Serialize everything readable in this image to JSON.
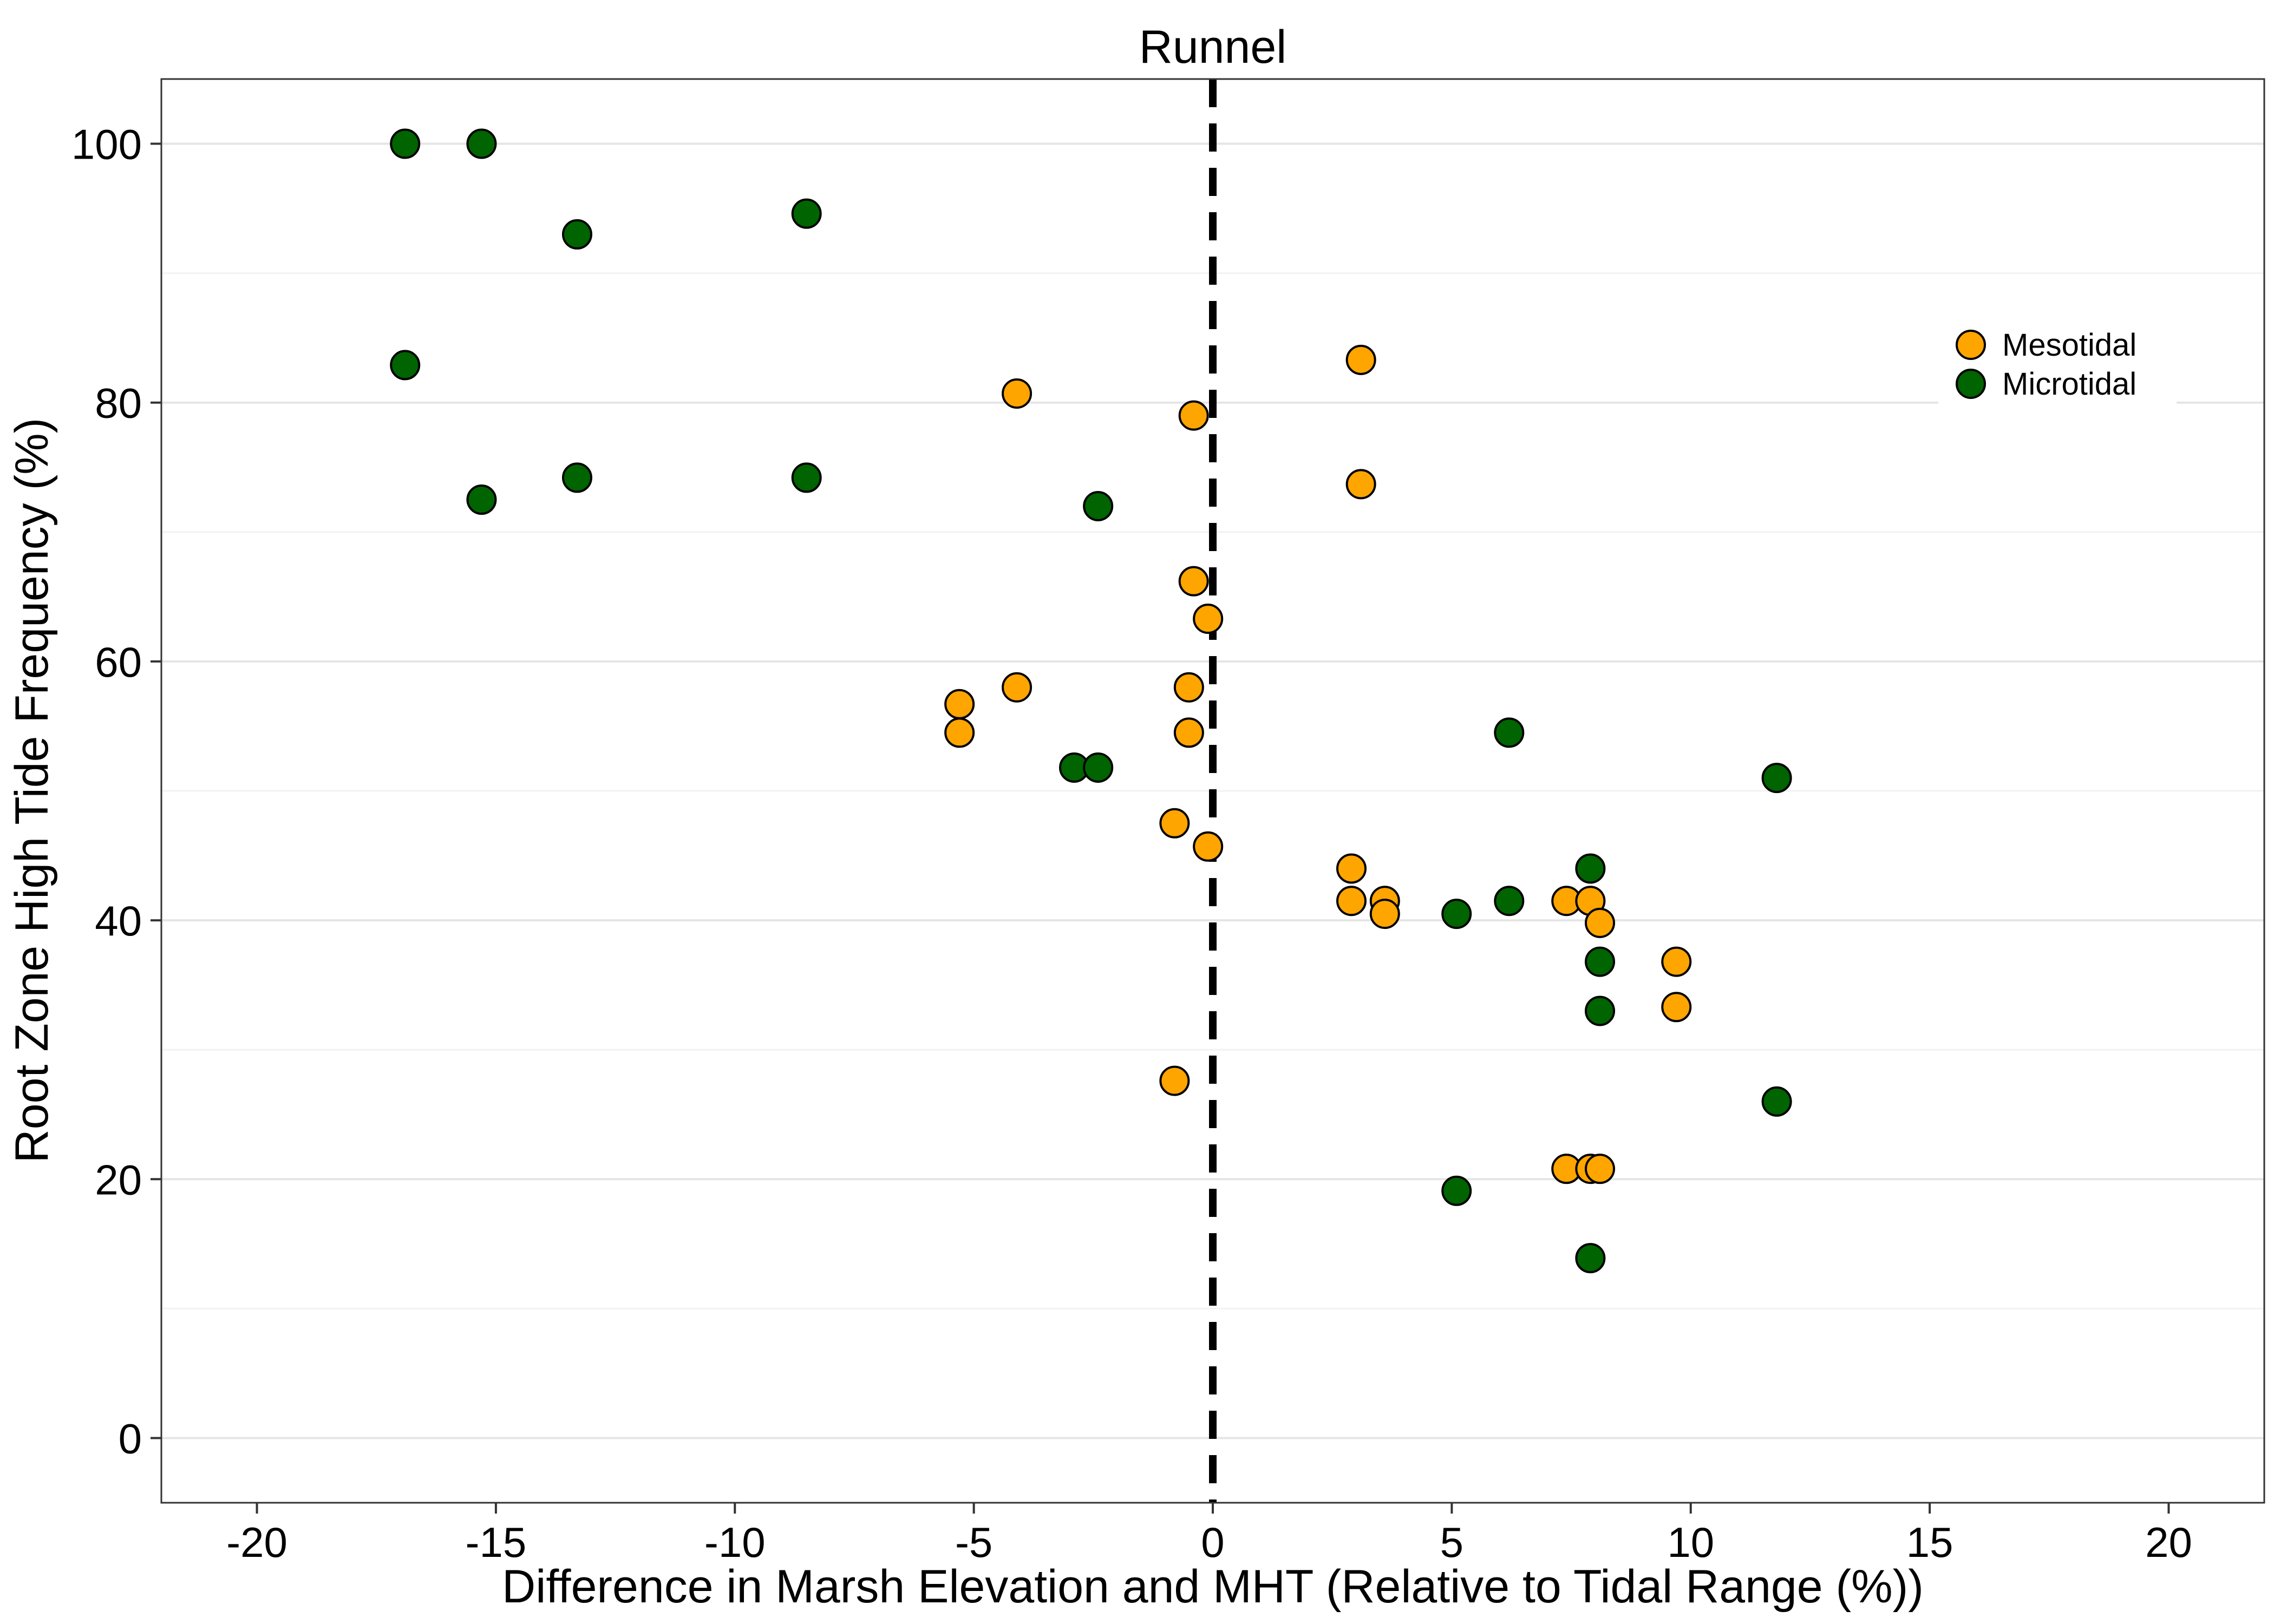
{
  "chart_data": {
    "type": "scatter",
    "title": "Runnel",
    "xlabel": "Difference in Marsh Elevation and MHT (Relative to Tidal Range (%))",
    "ylabel": "Root Zone High Tide Frequency (%)",
    "xlim": [
      -22,
      22
    ],
    "ylim": [
      -5,
      105
    ],
    "xticks": [
      -20,
      -15,
      -10,
      -5,
      0,
      5,
      10,
      15,
      20
    ],
    "yticks": [
      0,
      20,
      40,
      60,
      80,
      100
    ],
    "yminor": [
      10,
      30,
      50,
      70,
      90
    ],
    "grid": "horizontal",
    "reference_line": {
      "x": 0,
      "style": "dashed"
    },
    "legend": {
      "position": "right"
    },
    "series": [
      {
        "name": "Mesotidal",
        "color": "#FFA500",
        "points": [
          [
            -4.1,
            80.7
          ],
          [
            -0.4,
            79.0
          ],
          [
            3.1,
            83.3
          ],
          [
            3.1,
            73.7
          ],
          [
            -0.4,
            66.2
          ],
          [
            -0.1,
            63.3
          ],
          [
            -0.5,
            58.0
          ],
          [
            -4.1,
            58.0
          ],
          [
            -5.3,
            56.7
          ],
          [
            -5.3,
            54.5
          ],
          [
            -0.5,
            54.5
          ],
          [
            -0.8,
            47.5
          ],
          [
            -0.1,
            45.7
          ],
          [
            2.9,
            44.0
          ],
          [
            2.9,
            41.5
          ],
          [
            3.6,
            41.5
          ],
          [
            3.6,
            40.5
          ],
          [
            7.4,
            41.5
          ],
          [
            7.9,
            41.5
          ],
          [
            8.1,
            39.8
          ],
          [
            9.7,
            36.8
          ],
          [
            9.7,
            33.3
          ],
          [
            -0.8,
            27.6
          ],
          [
            7.4,
            20.8
          ],
          [
            7.9,
            20.8
          ],
          [
            8.1,
            20.8
          ]
        ]
      },
      {
        "name": "Microtidal",
        "color": "#006400",
        "points": [
          [
            -16.9,
            100.0
          ],
          [
            -15.3,
            100.0
          ],
          [
            -13.3,
            93.0
          ],
          [
            -8.5,
            94.6
          ],
          [
            -16.9,
            82.9
          ],
          [
            -15.3,
            72.5
          ],
          [
            -13.3,
            74.2
          ],
          [
            -8.5,
            74.2
          ],
          [
            -2.4,
            72.0
          ],
          [
            -2.9,
            51.8
          ],
          [
            -2.4,
            51.8
          ],
          [
            6.2,
            54.5
          ],
          [
            11.8,
            51.0
          ],
          [
            5.1,
            40.5
          ],
          [
            6.2,
            41.5
          ],
          [
            7.9,
            44.0
          ],
          [
            8.1,
            36.8
          ],
          [
            8.1,
            33.0
          ],
          [
            11.8,
            26.0
          ],
          [
            5.1,
            19.1
          ],
          [
            7.9,
            13.9
          ]
        ]
      }
    ]
  }
}
